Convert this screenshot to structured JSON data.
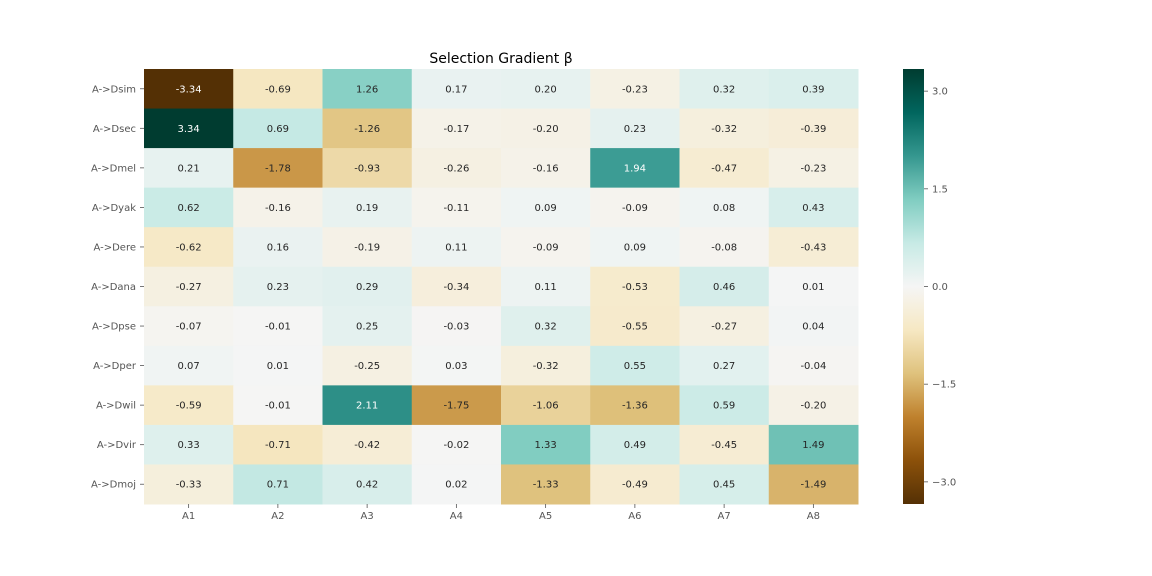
{
  "chart_data": {
    "type": "heatmap",
    "title": "Selection Gradient β",
    "rows": [
      "A->Dsim",
      "A->Dsec",
      "A->Dmel",
      "A->Dyak",
      "A->Dere",
      "A->Dana",
      "A->Dpse",
      "A->Dper",
      "A->Dwil",
      "A->Dvir",
      "A->Dmoj"
    ],
    "columns": [
      "A1",
      "A2",
      "A3",
      "A4",
      "A5",
      "A6",
      "A7",
      "A8"
    ],
    "values": [
      [
        -3.34,
        -0.69,
        1.26,
        0.17,
        0.2,
        -0.23,
        0.32,
        0.39
      ],
      [
        3.34,
        0.69,
        -1.26,
        -0.17,
        -0.2,
        0.23,
        -0.32,
        -0.39
      ],
      [
        0.21,
        -1.78,
        -0.93,
        -0.26,
        -0.16,
        1.94,
        -0.47,
        -0.23
      ],
      [
        0.62,
        -0.16,
        0.19,
        -0.11,
        0.09,
        -0.09,
        0.08,
        0.43
      ],
      [
        -0.62,
        0.16,
        -0.19,
        0.11,
        -0.09,
        0.09,
        -0.08,
        -0.43
      ],
      [
        -0.27,
        0.23,
        0.29,
        -0.34,
        0.11,
        -0.53,
        0.46,
        0.01
      ],
      [
        -0.07,
        -0.01,
        0.25,
        -0.03,
        0.32,
        -0.55,
        -0.27,
        0.04
      ],
      [
        0.07,
        0.01,
        -0.25,
        0.03,
        -0.32,
        0.55,
        0.27,
        -0.04
      ],
      [
        -0.59,
        -0.01,
        2.11,
        -1.75,
        -1.06,
        -1.36,
        0.59,
        -0.2
      ],
      [
        0.33,
        -0.71,
        -0.42,
        -0.02,
        1.33,
        0.49,
        -0.45,
        1.49
      ],
      [
        -0.33,
        0.71,
        0.42,
        0.02,
        -1.33,
        -0.49,
        0.45,
        -1.49
      ]
    ],
    "colormap": "BrBG",
    "vmin": -3.34,
    "vmax": 3.34,
    "colorbar_ticks": [
      3.0,
      1.5,
      0.0,
      -1.5,
      -3.0
    ],
    "colorbar_tick_labels": [
      "3.0",
      "1.5",
      "0.0",
      "−1.5",
      "−3.0"
    ],
    "colors": {
      "negative_extreme": "#543005",
      "neutral": "#f5f5f5",
      "positive_extreme": "#003c30"
    }
  }
}
